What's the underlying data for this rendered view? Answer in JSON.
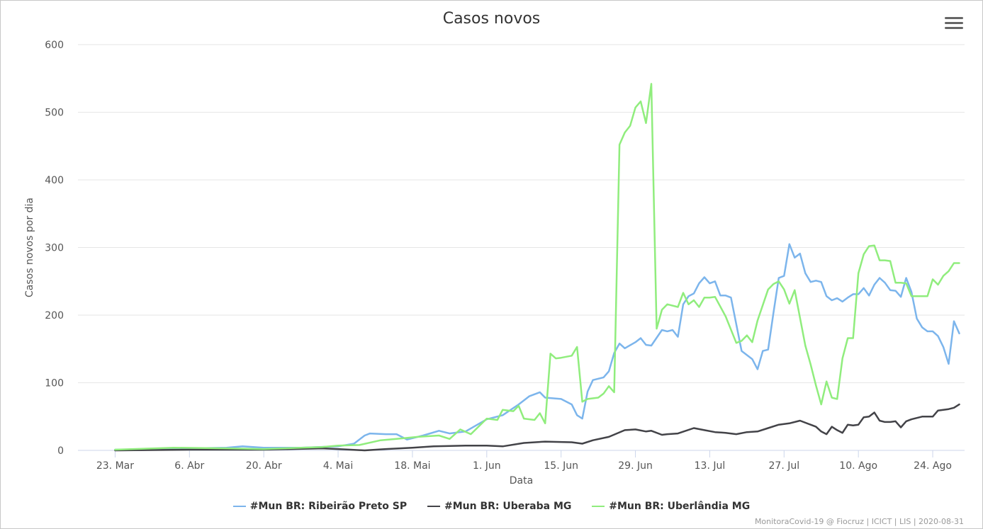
{
  "chart_data": {
    "type": "line",
    "title": "Casos novos",
    "xlabel": "Data",
    "ylabel": "Casos novos por dia",
    "ylim": [
      0,
      600
    ],
    "yticks": [
      0,
      100,
      200,
      300,
      400,
      500,
      600
    ],
    "x_start": "2020-03-16",
    "x_end": "2020-08-30",
    "xticks": [
      {
        "date": "2020-03-23",
        "label": "23. Mar"
      },
      {
        "date": "2020-04-06",
        "label": "6. Abr"
      },
      {
        "date": "2020-04-20",
        "label": "20. Abr"
      },
      {
        "date": "2020-05-04",
        "label": "4. Mai"
      },
      {
        "date": "2020-05-18",
        "label": "18. Mai"
      },
      {
        "date": "2020-06-01",
        "label": "1. Jun"
      },
      {
        "date": "2020-06-15",
        "label": "15. Jun"
      },
      {
        "date": "2020-06-29",
        "label": "29. Jun"
      },
      {
        "date": "2020-07-13",
        "label": "13. Jul"
      },
      {
        "date": "2020-07-27",
        "label": "27. Jul"
      },
      {
        "date": "2020-08-10",
        "label": "10. Ago"
      },
      {
        "date": "2020-08-24",
        "label": "24. Ago"
      }
    ],
    "legend_position": "bottom",
    "grid": true,
    "series": [
      {
        "name": "#Mun BR: Ribeirão Preto SP",
        "color": "#7cb5ec",
        "points": [
          [
            "2020-03-23",
            1
          ],
          [
            "2020-03-30",
            1
          ],
          [
            "2020-04-06",
            3
          ],
          [
            "2020-04-13",
            4
          ],
          [
            "2020-04-16",
            6
          ],
          [
            "2020-04-20",
            4
          ],
          [
            "2020-04-27",
            4
          ],
          [
            "2020-05-04",
            6
          ],
          [
            "2020-05-07",
            10
          ],
          [
            "2020-05-09",
            22
          ],
          [
            "2020-05-10",
            25
          ],
          [
            "2020-05-13",
            24
          ],
          [
            "2020-05-15",
            24
          ],
          [
            "2020-05-17",
            16
          ],
          [
            "2020-05-20",
            22
          ],
          [
            "2020-05-23",
            29
          ],
          [
            "2020-05-25",
            25
          ],
          [
            "2020-05-28",
            28
          ],
          [
            "2020-06-01",
            46
          ],
          [
            "2020-06-04",
            52
          ],
          [
            "2020-06-07",
            68
          ],
          [
            "2020-06-09",
            80
          ],
          [
            "2020-06-11",
            86
          ],
          [
            "2020-06-12",
            78
          ],
          [
            "2020-06-15",
            76
          ],
          [
            "2020-06-17",
            68
          ],
          [
            "2020-06-18",
            52
          ],
          [
            "2020-06-19",
            47
          ],
          [
            "2020-06-20",
            87
          ],
          [
            "2020-06-21",
            104
          ],
          [
            "2020-06-23",
            108
          ],
          [
            "2020-06-24",
            117
          ],
          [
            "2020-06-25",
            144
          ],
          [
            "2020-06-26",
            158
          ],
          [
            "2020-06-27",
            151
          ],
          [
            "2020-06-29",
            160
          ],
          [
            "2020-06-30",
            166
          ],
          [
            "2020-07-01",
            156
          ],
          [
            "2020-07-02",
            155
          ],
          [
            "2020-07-04",
            178
          ],
          [
            "2020-07-05",
            176
          ],
          [
            "2020-07-06",
            178
          ],
          [
            "2020-07-07",
            168
          ],
          [
            "2020-07-08",
            216
          ],
          [
            "2020-07-09",
            228
          ],
          [
            "2020-07-10",
            232
          ],
          [
            "2020-07-11",
            247
          ],
          [
            "2020-07-12",
            256
          ],
          [
            "2020-07-13",
            247
          ],
          [
            "2020-07-14",
            250
          ],
          [
            "2020-07-15",
            229
          ],
          [
            "2020-07-16",
            229
          ],
          [
            "2020-07-17",
            226
          ],
          [
            "2020-07-19",
            147
          ],
          [
            "2020-07-21",
            135
          ],
          [
            "2020-07-22",
            120
          ],
          [
            "2020-07-23",
            147
          ],
          [
            "2020-07-24",
            149
          ],
          [
            "2020-07-25",
            203
          ],
          [
            "2020-07-26",
            255
          ],
          [
            "2020-07-27",
            258
          ],
          [
            "2020-07-28",
            305
          ],
          [
            "2020-07-29",
            285
          ],
          [
            "2020-07-30",
            291
          ],
          [
            "2020-07-31",
            262
          ],
          [
            "2020-08-01",
            249
          ],
          [
            "2020-08-02",
            251
          ],
          [
            "2020-08-03",
            249
          ],
          [
            "2020-08-04",
            228
          ],
          [
            "2020-08-05",
            222
          ],
          [
            "2020-08-06",
            225
          ],
          [
            "2020-08-07",
            220
          ],
          [
            "2020-08-08",
            226
          ],
          [
            "2020-08-09",
            231
          ],
          [
            "2020-08-10",
            231
          ],
          [
            "2020-08-11",
            240
          ],
          [
            "2020-08-12",
            229
          ],
          [
            "2020-08-13",
            245
          ],
          [
            "2020-08-14",
            255
          ],
          [
            "2020-08-15",
            248
          ],
          [
            "2020-08-16",
            237
          ],
          [
            "2020-08-17",
            236
          ],
          [
            "2020-08-18",
            227
          ],
          [
            "2020-08-19",
            255
          ],
          [
            "2020-08-20",
            234
          ],
          [
            "2020-08-21",
            195
          ],
          [
            "2020-08-22",
            182
          ],
          [
            "2020-08-23",
            176
          ],
          [
            "2020-08-24",
            176
          ],
          [
            "2020-08-25",
            169
          ],
          [
            "2020-08-26",
            153
          ],
          [
            "2020-08-27",
            128
          ],
          [
            "2020-08-28",
            191
          ],
          [
            "2020-08-29",
            173
          ]
        ]
      },
      {
        "name": "#Mun BR: Uberaba MG",
        "color": "#434348",
        "points": [
          [
            "2020-03-23",
            0
          ],
          [
            "2020-04-06",
            1
          ],
          [
            "2020-04-20",
            1
          ],
          [
            "2020-05-01",
            3
          ],
          [
            "2020-05-04",
            2
          ],
          [
            "2020-05-09",
            0
          ],
          [
            "2020-05-13",
            2
          ],
          [
            "2020-05-18",
            4
          ],
          [
            "2020-05-22",
            6
          ],
          [
            "2020-05-28",
            7
          ],
          [
            "2020-06-01",
            7
          ],
          [
            "2020-06-04",
            6
          ],
          [
            "2020-06-08",
            11
          ],
          [
            "2020-06-12",
            13
          ],
          [
            "2020-06-17",
            12
          ],
          [
            "2020-06-19",
            10
          ],
          [
            "2020-06-21",
            15
          ],
          [
            "2020-06-24",
            20
          ],
          [
            "2020-06-27",
            30
          ],
          [
            "2020-06-29",
            31
          ],
          [
            "2020-07-01",
            28
          ],
          [
            "2020-07-02",
            29
          ],
          [
            "2020-07-04",
            23
          ],
          [
            "2020-07-05",
            24
          ],
          [
            "2020-07-07",
            25
          ],
          [
            "2020-07-10",
            33
          ],
          [
            "2020-07-12",
            30
          ],
          [
            "2020-07-14",
            27
          ],
          [
            "2020-07-16",
            26
          ],
          [
            "2020-07-18",
            24
          ],
          [
            "2020-07-20",
            27
          ],
          [
            "2020-07-22",
            28
          ],
          [
            "2020-07-24",
            33
          ],
          [
            "2020-07-26",
            38
          ],
          [
            "2020-07-28",
            40
          ],
          [
            "2020-07-30",
            44
          ],
          [
            "2020-08-01",
            38
          ],
          [
            "2020-08-02",
            35
          ],
          [
            "2020-08-03",
            28
          ],
          [
            "2020-08-04",
            24
          ],
          [
            "2020-08-05",
            35
          ],
          [
            "2020-08-06",
            30
          ],
          [
            "2020-08-07",
            26
          ],
          [
            "2020-08-08",
            38
          ],
          [
            "2020-08-09",
            37
          ],
          [
            "2020-08-10",
            38
          ],
          [
            "2020-08-11",
            49
          ],
          [
            "2020-08-12",
            50
          ],
          [
            "2020-08-13",
            56
          ],
          [
            "2020-08-14",
            44
          ],
          [
            "2020-08-15",
            42
          ],
          [
            "2020-08-16",
            42
          ],
          [
            "2020-08-17",
            43
          ],
          [
            "2020-08-18",
            34
          ],
          [
            "2020-08-19",
            43
          ],
          [
            "2020-08-20",
            46
          ],
          [
            "2020-08-21",
            48
          ],
          [
            "2020-08-22",
            50
          ],
          [
            "2020-08-24",
            50
          ],
          [
            "2020-08-25",
            59
          ],
          [
            "2020-08-27",
            61
          ],
          [
            "2020-08-28",
            63
          ],
          [
            "2020-08-29",
            68
          ]
        ]
      },
      {
        "name": "#Mun BR: Uberlândia MG",
        "color": "#90ed7d",
        "points": [
          [
            "2020-03-23",
            1
          ],
          [
            "2020-04-03",
            4
          ],
          [
            "2020-04-13",
            3
          ],
          [
            "2020-04-20",
            2
          ],
          [
            "2020-05-01",
            5
          ],
          [
            "2020-05-04",
            7
          ],
          [
            "2020-05-08",
            8
          ],
          [
            "2020-05-12",
            15
          ],
          [
            "2020-05-15",
            17
          ],
          [
            "2020-05-19",
            20
          ],
          [
            "2020-05-23",
            22
          ],
          [
            "2020-05-25",
            17
          ],
          [
            "2020-05-27",
            31
          ],
          [
            "2020-05-29",
            24
          ],
          [
            "2020-06-01",
            47
          ],
          [
            "2020-06-03",
            45
          ],
          [
            "2020-06-04",
            60
          ],
          [
            "2020-06-06",
            58
          ],
          [
            "2020-06-07",
            66
          ],
          [
            "2020-06-08",
            47
          ],
          [
            "2020-06-10",
            45
          ],
          [
            "2020-06-11",
            55
          ],
          [
            "2020-06-12",
            40
          ],
          [
            "2020-06-13",
            143
          ],
          [
            "2020-06-14",
            136
          ],
          [
            "2020-06-15",
            137
          ],
          [
            "2020-06-17",
            140
          ],
          [
            "2020-06-18",
            153
          ],
          [
            "2020-06-19",
            72
          ],
          [
            "2020-06-20",
            76
          ],
          [
            "2020-06-22",
            78
          ],
          [
            "2020-06-23",
            84
          ],
          [
            "2020-06-24",
            95
          ],
          [
            "2020-06-25",
            86
          ],
          [
            "2020-06-26",
            452
          ],
          [
            "2020-06-27",
            470
          ],
          [
            "2020-06-28",
            480
          ],
          [
            "2020-06-29",
            507
          ],
          [
            "2020-06-30",
            516
          ],
          [
            "2020-07-01",
            484
          ],
          [
            "2020-07-02",
            542
          ],
          [
            "2020-07-03",
            180
          ],
          [
            "2020-07-04",
            208
          ],
          [
            "2020-07-05",
            216
          ],
          [
            "2020-07-07",
            212
          ],
          [
            "2020-07-08",
            233
          ],
          [
            "2020-07-09",
            216
          ],
          [
            "2020-07-10",
            222
          ],
          [
            "2020-07-11",
            212
          ],
          [
            "2020-07-12",
            226
          ],
          [
            "2020-07-13",
            226
          ],
          [
            "2020-07-14",
            227
          ],
          [
            "2020-07-16",
            198
          ],
          [
            "2020-07-18",
            159
          ],
          [
            "2020-07-19",
            162
          ],
          [
            "2020-07-20",
            170
          ],
          [
            "2020-07-21",
            160
          ],
          [
            "2020-07-22",
            192
          ],
          [
            "2020-07-24",
            238
          ],
          [
            "2020-07-25",
            246
          ],
          [
            "2020-07-26",
            250
          ],
          [
            "2020-07-27",
            238
          ],
          [
            "2020-07-28",
            217
          ],
          [
            "2020-07-29",
            237
          ],
          [
            "2020-07-31",
            155
          ],
          [
            "2020-08-01",
            127
          ],
          [
            "2020-08-02",
            96
          ],
          [
            "2020-08-03",
            68
          ],
          [
            "2020-08-04",
            102
          ],
          [
            "2020-08-05",
            78
          ],
          [
            "2020-08-06",
            76
          ],
          [
            "2020-08-07",
            136
          ],
          [
            "2020-08-08",
            166
          ],
          [
            "2020-08-09",
            166
          ],
          [
            "2020-08-10",
            262
          ],
          [
            "2020-08-11",
            290
          ],
          [
            "2020-08-12",
            302
          ],
          [
            "2020-08-13",
            303
          ],
          [
            "2020-08-14",
            281
          ],
          [
            "2020-08-15",
            281
          ],
          [
            "2020-08-16",
            280
          ],
          [
            "2020-08-17",
            248
          ],
          [
            "2020-08-18",
            248
          ],
          [
            "2020-08-19",
            247
          ],
          [
            "2020-08-20",
            228
          ],
          [
            "2020-08-22",
            228
          ],
          [
            "2020-08-23",
            228
          ],
          [
            "2020-08-24",
            253
          ],
          [
            "2020-08-25",
            245
          ],
          [
            "2020-08-26",
            258
          ],
          [
            "2020-08-27",
            265
          ],
          [
            "2020-08-28",
            277
          ],
          [
            "2020-08-29",
            277
          ]
        ]
      }
    ]
  },
  "credits": "MonitoraCovid-19 @ Fiocruz | ICICT | LIS | 2020-08-31"
}
